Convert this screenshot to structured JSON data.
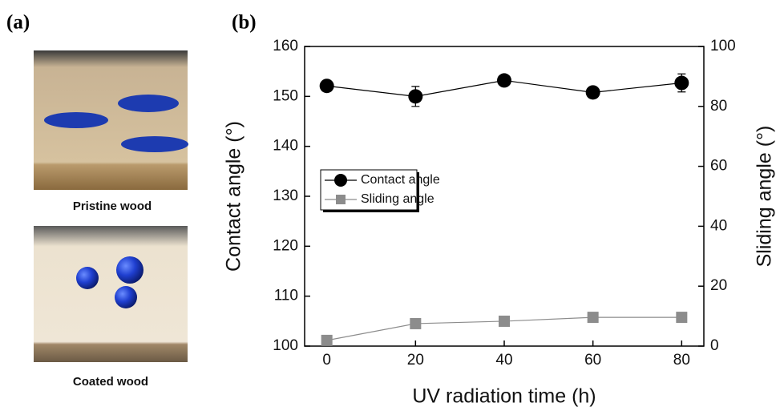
{
  "panel_a": {
    "label": "(a)",
    "captions": [
      "Pristine wood",
      "Coated wood"
    ]
  },
  "chart_data": {
    "type": "line",
    "panel_label": "(b)",
    "x_label": "UV radiation time (h)",
    "y_label": "Contact angle (°)",
    "y2_label": "Sliding angle (°)",
    "x": [
      0,
      20,
      40,
      60,
      80
    ],
    "series": [
      {
        "name": "Contact angle",
        "color": "#000000",
        "marker": "circle",
        "values": [
          152.1,
          150,
          153.2,
          150.8,
          152.7
        ],
        "errors": [
          0.4,
          2,
          0.4,
          0.5,
          1.8
        ]
      },
      {
        "name": "Sliding angle",
        "color": "#8c8c8c",
        "marker": "square",
        "axis": "y2",
        "values": [
          1.9,
          7.5,
          8.3,
          9.6,
          9.6
        ],
        "errors": [
          0.5,
          0.8,
          1,
          1.5,
          0.8
        ]
      }
    ],
    "xlim": [
      -5,
      85
    ],
    "xticks": [
      0,
      20,
      40,
      60,
      80
    ],
    "ylim": [
      100,
      160
    ],
    "yticks": [
      100,
      110,
      120,
      130,
      140,
      150,
      160
    ],
    "y2lim": [
      0,
      100
    ],
    "y2ticks": [
      0,
      20,
      40,
      60,
      80,
      100
    ],
    "legend": "center-left"
  }
}
